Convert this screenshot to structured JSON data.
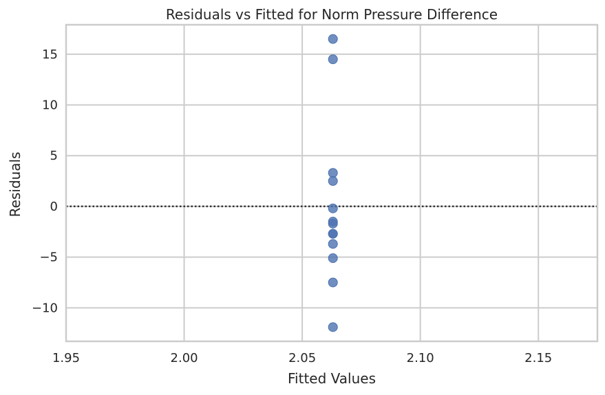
{
  "chart_data": {
    "type": "scatter",
    "title": "Residuals vs Fitted for Norm Pressure Difference",
    "xlabel": "Fitted Values",
    "ylabel": "Residuals",
    "xlim": [
      1.95,
      2.175
    ],
    "ylim": [
      -13.3,
      17.9
    ],
    "xticks": [
      1.95,
      2.0,
      2.05,
      2.1,
      2.15
    ],
    "xtick_labels": [
      "1.95",
      "2.00",
      "2.05",
      "2.10",
      "2.15"
    ],
    "yticks": [
      -10,
      -5,
      0,
      5,
      10,
      15
    ],
    "ytick_labels": [
      "−10",
      "−5",
      "0",
      "5",
      "10",
      "15"
    ],
    "grid": true,
    "reference_line": {
      "y": 0,
      "style": "dotted",
      "color": "#333333"
    },
    "series": [
      {
        "color": "#4c72b0",
        "opacity": 0.8,
        "points": [
          {
            "x": 2.063,
            "y": 16.5
          },
          {
            "x": 2.063,
            "y": 14.5
          },
          {
            "x": 2.063,
            "y": 3.3
          },
          {
            "x": 2.063,
            "y": 2.5
          },
          {
            "x": 2.063,
            "y": -0.2
          },
          {
            "x": 2.063,
            "y": -1.5
          },
          {
            "x": 2.063,
            "y": -1.7
          },
          {
            "x": 2.063,
            "y": -2.7
          },
          {
            "x": 2.063,
            "y": -2.7
          },
          {
            "x": 2.063,
            "y": -3.7
          },
          {
            "x": 2.063,
            "y": -5.1
          },
          {
            "x": 2.063,
            "y": -7.5
          },
          {
            "x": 2.063,
            "y": -11.9
          }
        ]
      }
    ]
  }
}
